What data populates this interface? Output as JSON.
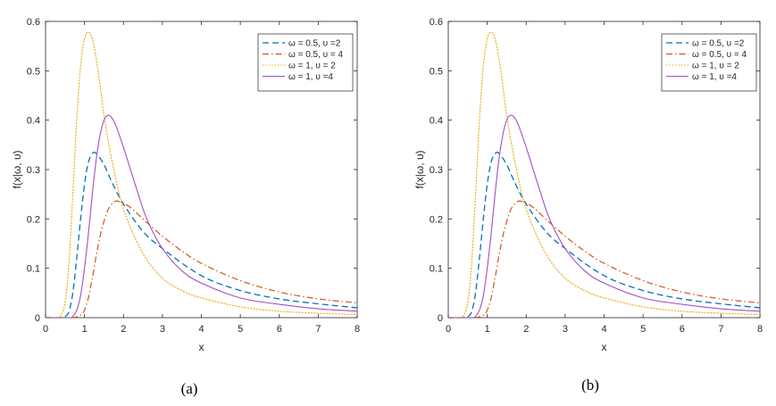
{
  "chart_data": [
    {
      "type": "line",
      "caption": "(a)",
      "xlabel": "x",
      "ylabel": "f(x|ω, υ)",
      "xlim": [
        0,
        8
      ],
      "ylim": [
        0,
        0.6
      ],
      "xticks": [
        "0",
        "1",
        "2",
        "3",
        "4",
        "5",
        "6",
        "7",
        "8"
      ],
      "yticks": [
        "0",
        "0.1",
        "0.2",
        "0.3",
        "0.4",
        "0.5",
        "0.6"
      ],
      "legend_position": "top-right",
      "series": [
        {
          "name": "ω = 0.5, υ =2",
          "style": "dashed",
          "color": "#0072BD",
          "x": [
            0.4,
            0.5,
            0.6,
            0.7,
            0.8,
            0.9,
            1.0,
            1.1,
            1.2,
            1.3,
            1.5,
            1.7,
            2.0,
            2.5,
            3.0,
            4.0,
            5.0,
            6.0,
            7.0,
            8.0
          ],
          "y": [
            0.0,
            0.002,
            0.012,
            0.05,
            0.12,
            0.2,
            0.27,
            0.315,
            0.332,
            0.333,
            0.31,
            0.275,
            0.23,
            0.175,
            0.14,
            0.085,
            0.055,
            0.038,
            0.028,
            0.02
          ]
        },
        {
          "name": "ω = 0.5, υ = 4",
          "style": "dashdot",
          "color": "#D95319",
          "x": [
            0.5,
            0.7,
            0.9,
            1.0,
            1.1,
            1.2,
            1.3,
            1.4,
            1.5,
            1.6,
            1.7,
            1.8,
            1.9,
            2.0,
            2.2,
            2.5,
            3.0,
            3.5,
            4.0,
            5.0,
            6.0,
            7.0,
            8.0
          ],
          "y": [
            0.0,
            0.0,
            0.005,
            0.015,
            0.04,
            0.08,
            0.125,
            0.165,
            0.195,
            0.218,
            0.23,
            0.236,
            0.235,
            0.232,
            0.222,
            0.2,
            0.165,
            0.135,
            0.11,
            0.075,
            0.052,
            0.038,
            0.03
          ]
        },
        {
          "name": "ω = 1, υ = 2",
          "style": "dotted",
          "color": "#EDB120",
          "x": [
            0.3,
            0.4,
            0.5,
            0.6,
            0.7,
            0.8,
            0.9,
            1.0,
            1.1,
            1.2,
            1.3,
            1.4,
            1.5,
            1.7,
            2.0,
            2.5,
            3.0,
            3.5,
            4.0,
            5.0,
            6.0,
            7.0,
            8.0
          ],
          "y": [
            0.0,
            0.005,
            0.03,
            0.11,
            0.25,
            0.4,
            0.51,
            0.565,
            0.578,
            0.565,
            0.525,
            0.47,
            0.41,
            0.32,
            0.22,
            0.13,
            0.08,
            0.055,
            0.04,
            0.022,
            0.013,
            0.009,
            0.006
          ]
        },
        {
          "name": "ω = 1, υ =4",
          "style": "solid",
          "color": "#A24FC7",
          "x": [
            0.6,
            0.7,
            0.8,
            0.9,
            1.0,
            1.1,
            1.2,
            1.3,
            1.4,
            1.5,
            1.6,
            1.7,
            1.8,
            2.0,
            2.3,
            2.6,
            3.0,
            3.5,
            4.0,
            5.0,
            6.0,
            7.0,
            8.0
          ],
          "y": [
            0.0,
            0.003,
            0.015,
            0.045,
            0.1,
            0.17,
            0.25,
            0.32,
            0.37,
            0.4,
            0.41,
            0.405,
            0.39,
            0.345,
            0.27,
            0.2,
            0.14,
            0.095,
            0.07,
            0.04,
            0.027,
            0.018,
            0.013
          ]
        }
      ]
    },
    {
      "type": "line",
      "caption": "(b)",
      "xlabel": "x",
      "ylabel": "f(x|ω, υ)",
      "xlim": [
        0,
        8
      ],
      "ylim": [
        0,
        0.6
      ],
      "xticks": [
        "0",
        "1",
        "2",
        "3",
        "4",
        "5",
        "6",
        "7",
        "8"
      ],
      "yticks": [
        "0",
        "0.1",
        "0.2",
        "0.3",
        "0.4",
        "0.5",
        "0.6"
      ],
      "legend_position": "top-right",
      "series": [
        {
          "name": "ω = 0.5, υ =2",
          "style": "dashed",
          "color": "#0072BD",
          "x": [
            0.4,
            0.5,
            0.6,
            0.7,
            0.8,
            0.9,
            1.0,
            1.1,
            1.2,
            1.3,
            1.5,
            1.7,
            2.0,
            2.5,
            3.0,
            4.0,
            5.0,
            6.0,
            7.0,
            8.0
          ],
          "y": [
            0.0,
            0.002,
            0.012,
            0.05,
            0.12,
            0.2,
            0.27,
            0.315,
            0.332,
            0.333,
            0.31,
            0.275,
            0.23,
            0.175,
            0.14,
            0.085,
            0.055,
            0.038,
            0.028,
            0.02
          ]
        },
        {
          "name": "ω = 0.5, υ = 4",
          "style": "dashdot",
          "color": "#D95319",
          "x": [
            0.5,
            0.7,
            0.9,
            1.0,
            1.1,
            1.2,
            1.3,
            1.4,
            1.5,
            1.6,
            1.7,
            1.8,
            1.9,
            2.0,
            2.2,
            2.5,
            3.0,
            3.5,
            4.0,
            5.0,
            6.0,
            7.0,
            8.0
          ],
          "y": [
            0.0,
            0.0,
            0.005,
            0.015,
            0.04,
            0.08,
            0.125,
            0.165,
            0.195,
            0.218,
            0.23,
            0.236,
            0.235,
            0.232,
            0.222,
            0.2,
            0.165,
            0.135,
            0.11,
            0.075,
            0.052,
            0.038,
            0.03
          ]
        },
        {
          "name": "ω = 1, υ = 2",
          "style": "dotted",
          "color": "#EDB120",
          "x": [
            0.3,
            0.4,
            0.5,
            0.6,
            0.7,
            0.8,
            0.9,
            1.0,
            1.1,
            1.2,
            1.3,
            1.4,
            1.5,
            1.7,
            2.0,
            2.5,
            3.0,
            3.5,
            4.0,
            5.0,
            6.0,
            7.0,
            8.0
          ],
          "y": [
            0.0,
            0.005,
            0.03,
            0.11,
            0.25,
            0.4,
            0.51,
            0.565,
            0.578,
            0.565,
            0.525,
            0.47,
            0.41,
            0.32,
            0.22,
            0.13,
            0.08,
            0.055,
            0.04,
            0.022,
            0.013,
            0.009,
            0.006
          ]
        },
        {
          "name": "ω = 1, υ =4",
          "style": "solid",
          "color": "#A24FC7",
          "x": [
            0.6,
            0.7,
            0.8,
            0.9,
            1.0,
            1.1,
            1.2,
            1.3,
            1.4,
            1.5,
            1.6,
            1.7,
            1.8,
            2.0,
            2.3,
            2.6,
            3.0,
            3.5,
            4.0,
            5.0,
            6.0,
            7.0,
            8.0
          ],
          "y": [
            0.0,
            0.003,
            0.015,
            0.045,
            0.1,
            0.17,
            0.25,
            0.32,
            0.37,
            0.4,
            0.41,
            0.405,
            0.39,
            0.345,
            0.27,
            0.2,
            0.14,
            0.095,
            0.07,
            0.04,
            0.027,
            0.018,
            0.013
          ]
        }
      ]
    }
  ]
}
